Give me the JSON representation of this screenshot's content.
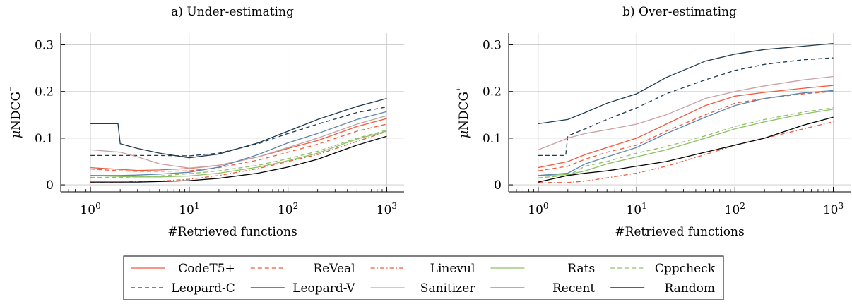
{
  "colors": {
    "CodeT5+": "#f05a3c",
    "ReVeal": "#f05a3c",
    "Linevul": "#f05a3c",
    "Rats": "#8cc063",
    "Cppcheck": "#8cc063",
    "Leopard-C": "#1f3b4d",
    "Leopard-V": "#1f3b4d",
    "Sanitizer": "#c9a0a6",
    "Recent": "#5b86b0",
    "Random": "#000000"
  },
  "legend": {
    "entries": [
      {
        "name": "CodeT5+",
        "style": "solid"
      },
      {
        "name": "ReVeal",
        "style": "dashed"
      },
      {
        "name": "Linevul",
        "style": "dashdot"
      },
      {
        "name": "Rats",
        "style": "solid"
      },
      {
        "name": "Cppcheck",
        "style": "dashed"
      },
      {
        "name": "Leopard-C",
        "style": "dashed"
      },
      {
        "name": "Leopard-V",
        "style": "solid"
      },
      {
        "name": "Sanitizer",
        "style": "solid"
      },
      {
        "name": "Recent",
        "style": "solid"
      },
      {
        "name": "Random",
        "style": "solid"
      }
    ]
  },
  "chart_data": [
    {
      "type": "line",
      "title": "a) Under-estimating",
      "xlabel": "#Retrieved functions",
      "ylabel": "μNDCG⁻",
      "xscale": "log",
      "xlim": [
        0.5,
        1500
      ],
      "ylim": [
        -0.015,
        0.325
      ],
      "xticks": [
        {
          "value": 1,
          "label": "10^0"
        },
        {
          "value": 10,
          "label": "10^1"
        },
        {
          "value": 100,
          "label": "10^2"
        },
        {
          "value": 1000,
          "label": "10^3"
        }
      ],
      "yticks": [
        0,
        0.1,
        0.2,
        0.3
      ],
      "grid": true,
      "series": [
        {
          "name": "CodeT5+",
          "x": [
            1,
            2,
            3,
            5,
            10,
            20,
            50,
            100,
            200,
            500,
            1000
          ],
          "y": [
            0.037,
            0.033,
            0.031,
            0.032,
            0.035,
            0.042,
            0.06,
            0.078,
            0.095,
            0.125,
            0.142
          ]
        },
        {
          "name": "ReVeal",
          "x": [
            1,
            2,
            3,
            5,
            10,
            20,
            50,
            100,
            200,
            500,
            1000
          ],
          "y": [
            0.034,
            0.03,
            0.029,
            0.029,
            0.03,
            0.037,
            0.053,
            0.07,
            0.087,
            0.115,
            0.13
          ]
        },
        {
          "name": "Linevul",
          "x": [
            1,
            2,
            3,
            5,
            10,
            20,
            50,
            100,
            200,
            500,
            1000
          ],
          "y": [
            0.006,
            0.006,
            0.007,
            0.008,
            0.012,
            0.02,
            0.035,
            0.05,
            0.065,
            0.093,
            0.114
          ]
        },
        {
          "name": "Rats",
          "x": [
            1,
            2,
            3,
            5,
            10,
            20,
            50,
            100,
            200,
            500,
            1000
          ],
          "y": [
            0.02,
            0.018,
            0.017,
            0.017,
            0.019,
            0.025,
            0.038,
            0.052,
            0.068,
            0.098,
            0.115
          ]
        },
        {
          "name": "Cppcheck",
          "x": [
            1,
            2,
            3,
            5,
            10,
            20,
            50,
            100,
            200,
            500,
            1000
          ],
          "y": [
            0.016,
            0.016,
            0.017,
            0.019,
            0.024,
            0.03,
            0.042,
            0.056,
            0.072,
            0.1,
            0.117
          ]
        },
        {
          "name": "Leopard-C",
          "x": [
            1,
            2,
            3,
            5,
            10,
            20,
            50,
            100,
            200,
            500,
            1000
          ],
          "y": [
            0.063,
            0.063,
            0.063,
            0.063,
            0.062,
            0.068,
            0.088,
            0.11,
            0.13,
            0.155,
            0.167
          ]
        },
        {
          "name": "Leopard-V",
          "x": [
            1,
            1.9,
            2,
            3,
            5,
            10,
            20,
            50,
            100,
            200,
            500,
            1000
          ],
          "y": [
            0.131,
            0.131,
            0.088,
            0.078,
            0.068,
            0.058,
            0.066,
            0.09,
            0.115,
            0.14,
            0.168,
            0.185
          ]
        },
        {
          "name": "Sanitizer",
          "x": [
            1,
            2,
            3,
            5,
            10,
            20,
            50,
            100,
            200,
            500,
            1000
          ],
          "y": [
            0.075,
            0.07,
            0.06,
            0.045,
            0.036,
            0.042,
            0.06,
            0.08,
            0.1,
            0.13,
            0.148
          ]
        },
        {
          "name": "Recent",
          "x": [
            1,
            2,
            3,
            5,
            10,
            20,
            50,
            100,
            200,
            500,
            1000
          ],
          "y": [
            0.02,
            0.02,
            0.021,
            0.023,
            0.027,
            0.038,
            0.065,
            0.09,
            0.11,
            0.14,
            0.157
          ]
        },
        {
          "name": "Random",
          "x": [
            1,
            2,
            3,
            5,
            10,
            20,
            50,
            100,
            200,
            500,
            1000
          ],
          "y": [
            0.006,
            0.006,
            0.006,
            0.007,
            0.009,
            0.014,
            0.025,
            0.038,
            0.055,
            0.085,
            0.104
          ]
        }
      ]
    },
    {
      "type": "line",
      "title": "b) Over-estimating",
      "xlabel": "#Retrieved functions",
      "ylabel": "μNDCG⁺",
      "xscale": "log",
      "xlim": [
        0.5,
        1500
      ],
      "ylim": [
        -0.015,
        0.325
      ],
      "xticks": [
        {
          "value": 1,
          "label": "10^0"
        },
        {
          "value": 10,
          "label": "10^1"
        },
        {
          "value": 100,
          "label": "10^2"
        },
        {
          "value": 1000,
          "label": "10^3"
        }
      ],
      "yticks": [
        0,
        0.1,
        0.2,
        0.3
      ],
      "grid": true,
      "series": [
        {
          "name": "CodeT5+",
          "x": [
            1,
            2,
            3,
            5,
            10,
            20,
            50,
            100,
            200,
            500,
            1000
          ],
          "y": [
            0.037,
            0.05,
            0.065,
            0.08,
            0.1,
            0.13,
            0.17,
            0.19,
            0.198,
            0.207,
            0.213
          ]
        },
        {
          "name": "ReVeal",
          "x": [
            1,
            2,
            3,
            5,
            10,
            20,
            50,
            100,
            200,
            500,
            1000
          ],
          "y": [
            0.03,
            0.04,
            0.055,
            0.07,
            0.085,
            0.115,
            0.15,
            0.175,
            0.185,
            0.195,
            0.2
          ]
        },
        {
          "name": "Linevul",
          "x": [
            1,
            2,
            3,
            5,
            10,
            20,
            50,
            100,
            200,
            500,
            1000
          ],
          "y": [
            0.005,
            0.005,
            0.008,
            0.015,
            0.025,
            0.04,
            0.065,
            0.085,
            0.1,
            0.12,
            0.135
          ]
        },
        {
          "name": "Rats",
          "x": [
            1,
            2,
            3,
            5,
            10,
            20,
            50,
            100,
            200,
            500,
            1000
          ],
          "y": [
            0.02,
            0.022,
            0.03,
            0.045,
            0.06,
            0.075,
            0.1,
            0.12,
            0.135,
            0.152,
            0.162
          ]
        },
        {
          "name": "Cppcheck",
          "x": [
            1,
            2,
            3,
            5,
            10,
            20,
            50,
            100,
            200,
            500,
            1000
          ],
          "y": [
            0.015,
            0.02,
            0.04,
            0.05,
            0.068,
            0.082,
            0.105,
            0.125,
            0.14,
            0.156,
            0.165
          ]
        },
        {
          "name": "Leopard-C",
          "x": [
            1,
            1.9,
            2,
            3,
            5,
            10,
            20,
            50,
            100,
            200,
            500,
            1000
          ],
          "y": [
            0.063,
            0.063,
            0.105,
            0.12,
            0.14,
            0.165,
            0.195,
            0.225,
            0.245,
            0.258,
            0.268,
            0.272
          ]
        },
        {
          "name": "Leopard-V",
          "x": [
            1,
            2,
            3,
            5,
            10,
            20,
            50,
            100,
            200,
            500,
            1000
          ],
          "y": [
            0.131,
            0.14,
            0.155,
            0.175,
            0.195,
            0.23,
            0.265,
            0.28,
            0.29,
            0.297,
            0.303
          ]
        },
        {
          "name": "Sanitizer",
          "x": [
            1,
            2,
            3,
            5,
            10,
            20,
            50,
            100,
            200,
            500,
            1000
          ],
          "y": [
            0.075,
            0.1,
            0.11,
            0.118,
            0.13,
            0.15,
            0.185,
            0.2,
            0.212,
            0.225,
            0.232
          ]
        },
        {
          "name": "Recent",
          "x": [
            1,
            2,
            3,
            5,
            10,
            20,
            50,
            100,
            200,
            500,
            1000
          ],
          "y": [
            0.02,
            0.025,
            0.045,
            0.06,
            0.08,
            0.11,
            0.145,
            0.17,
            0.185,
            0.197,
            0.202
          ]
        },
        {
          "name": "Random",
          "x": [
            1,
            2,
            3,
            5,
            10,
            20,
            50,
            100,
            200,
            500,
            1000
          ],
          "y": [
            0.006,
            0.02,
            0.025,
            0.03,
            0.04,
            0.05,
            0.07,
            0.085,
            0.1,
            0.128,
            0.145
          ]
        }
      ]
    }
  ]
}
